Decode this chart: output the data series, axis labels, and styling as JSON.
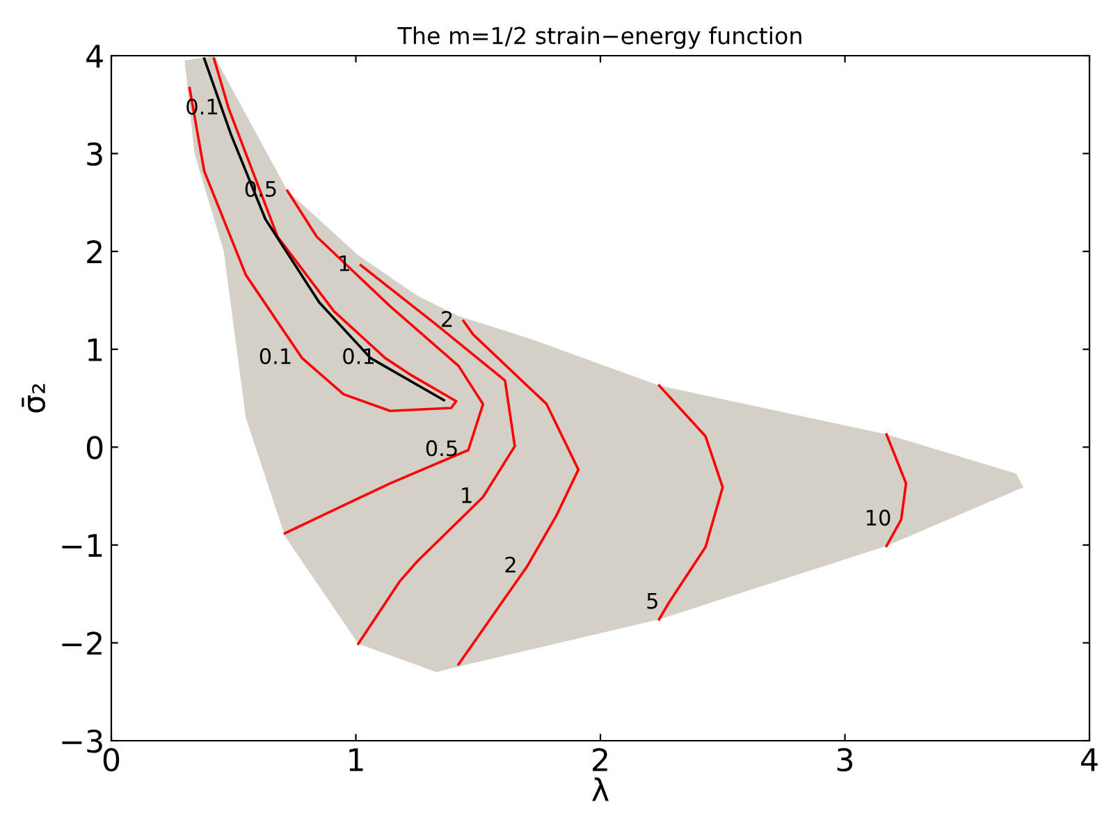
{
  "chart_data": {
    "type": "line",
    "title": "The m=1/2 strain−energy function",
    "xlabel": "λ",
    "ylabel": "σ̄₂",
    "xlim": [
      0,
      4
    ],
    "ylim": [
      -3,
      4
    ],
    "xticks": [
      0,
      1,
      2,
      3,
      4
    ],
    "yticks": [
      -3,
      -2,
      -1,
      0,
      1,
      2,
      3,
      4
    ],
    "grid": false,
    "legend": false,
    "marker": "none",
    "line_style": "solid",
    "series": [
      {
        "type": "area",
        "color": "#d4d0c8",
        "x": [
          0.3,
          0.34,
          0.46,
          0.55,
          0.71,
          1.01,
          1.33,
          1.44,
          2.24,
          3.17,
          3.73,
          3.7,
          3.17,
          2.24,
          1.71,
          1.42,
          1.25,
          1.01,
          0.72,
          0.42
        ],
        "values": [
          3.95,
          3.0,
          2.0,
          0.3,
          -0.91,
          -2.01,
          -2.3,
          -2.23,
          -1.76,
          -1.01,
          -0.41,
          -0.27,
          0.13,
          0.63,
          1.11,
          1.34,
          1.55,
          1.96,
          2.62,
          4.0
        ]
      },
      {
        "color": "#ff0000",
        "x": [
          0.32,
          0.38,
          0.55,
          0.78,
          0.95,
          1.14,
          1.39,
          1.41,
          1.23,
          1.12,
          0.91,
          0.68,
          0.48,
          0.42
        ],
        "values": [
          3.67,
          2.82,
          1.76,
          0.91,
          0.54,
          0.37,
          0.4,
          0.47,
          0.73,
          0.91,
          1.39,
          2.15,
          3.46,
          3.97
        ]
      },
      {
        "color": "#000000",
        "x": [
          0.38,
          0.49,
          0.63,
          0.85,
          1.06,
          1.36
        ],
        "values": [
          3.97,
          3.19,
          2.33,
          1.48,
          0.91,
          0.48
        ]
      },
      {
        "color": "#ff0000",
        "x": [
          0.72,
          0.84,
          1.14,
          1.42,
          1.52,
          1.46,
          1.14,
          0.71
        ],
        "values": [
          2.62,
          2.15,
          1.44,
          0.83,
          0.44,
          -0.03,
          -0.37,
          -0.88
        ]
      },
      {
        "color": "#ff0000",
        "x": [
          1.02,
          1.33,
          1.61,
          1.65,
          1.52,
          1.25,
          1.18,
          1.01
        ],
        "values": [
          1.86,
          1.25,
          0.68,
          0.01,
          -0.51,
          -1.17,
          -1.37,
          -2.01
        ]
      },
      {
        "color": "#ff0000",
        "x": [
          1.44,
          1.48,
          1.78,
          1.91,
          1.82,
          1.7,
          1.42
        ],
        "values": [
          1.29,
          1.15,
          0.44,
          -0.23,
          -0.7,
          -1.22,
          -2.22
        ]
      },
      {
        "color": "#ff0000",
        "x": [
          2.24,
          2.43,
          2.5,
          2.43,
          2.28,
          2.24
        ],
        "values": [
          0.63,
          0.11,
          -0.41,
          -1.02,
          -1.59,
          -1.76
        ]
      },
      {
        "color": "#ff0000",
        "x": [
          3.17,
          3.25,
          3.23,
          3.17
        ],
        "values": [
          0.13,
          -0.37,
          -0.74,
          -1.01
        ]
      }
    ],
    "annotations": [
      {
        "text": "0.1",
        "x": 0.48,
        "y": 3.46
      },
      {
        "text": "0.5",
        "x": 0.72,
        "y": 2.62
      },
      {
        "text": "1",
        "x": 1.02,
        "y": 1.86
      },
      {
        "text": "2",
        "x": 1.44,
        "y": 1.29
      },
      {
        "text": "0.1",
        "x": 0.78,
        "y": 0.91
      },
      {
        "text": "0.1",
        "x": 1.12,
        "y": 0.91
      },
      {
        "text": "0.5",
        "x": 1.46,
        "y": -0.03
      },
      {
        "text": "1",
        "x": 1.52,
        "y": -0.51
      },
      {
        "text": "2",
        "x": 1.7,
        "y": -1.22
      },
      {
        "text": "5",
        "x": 2.28,
        "y": -1.59
      },
      {
        "text": "10",
        "x": 3.23,
        "y": -0.74
      }
    ]
  }
}
